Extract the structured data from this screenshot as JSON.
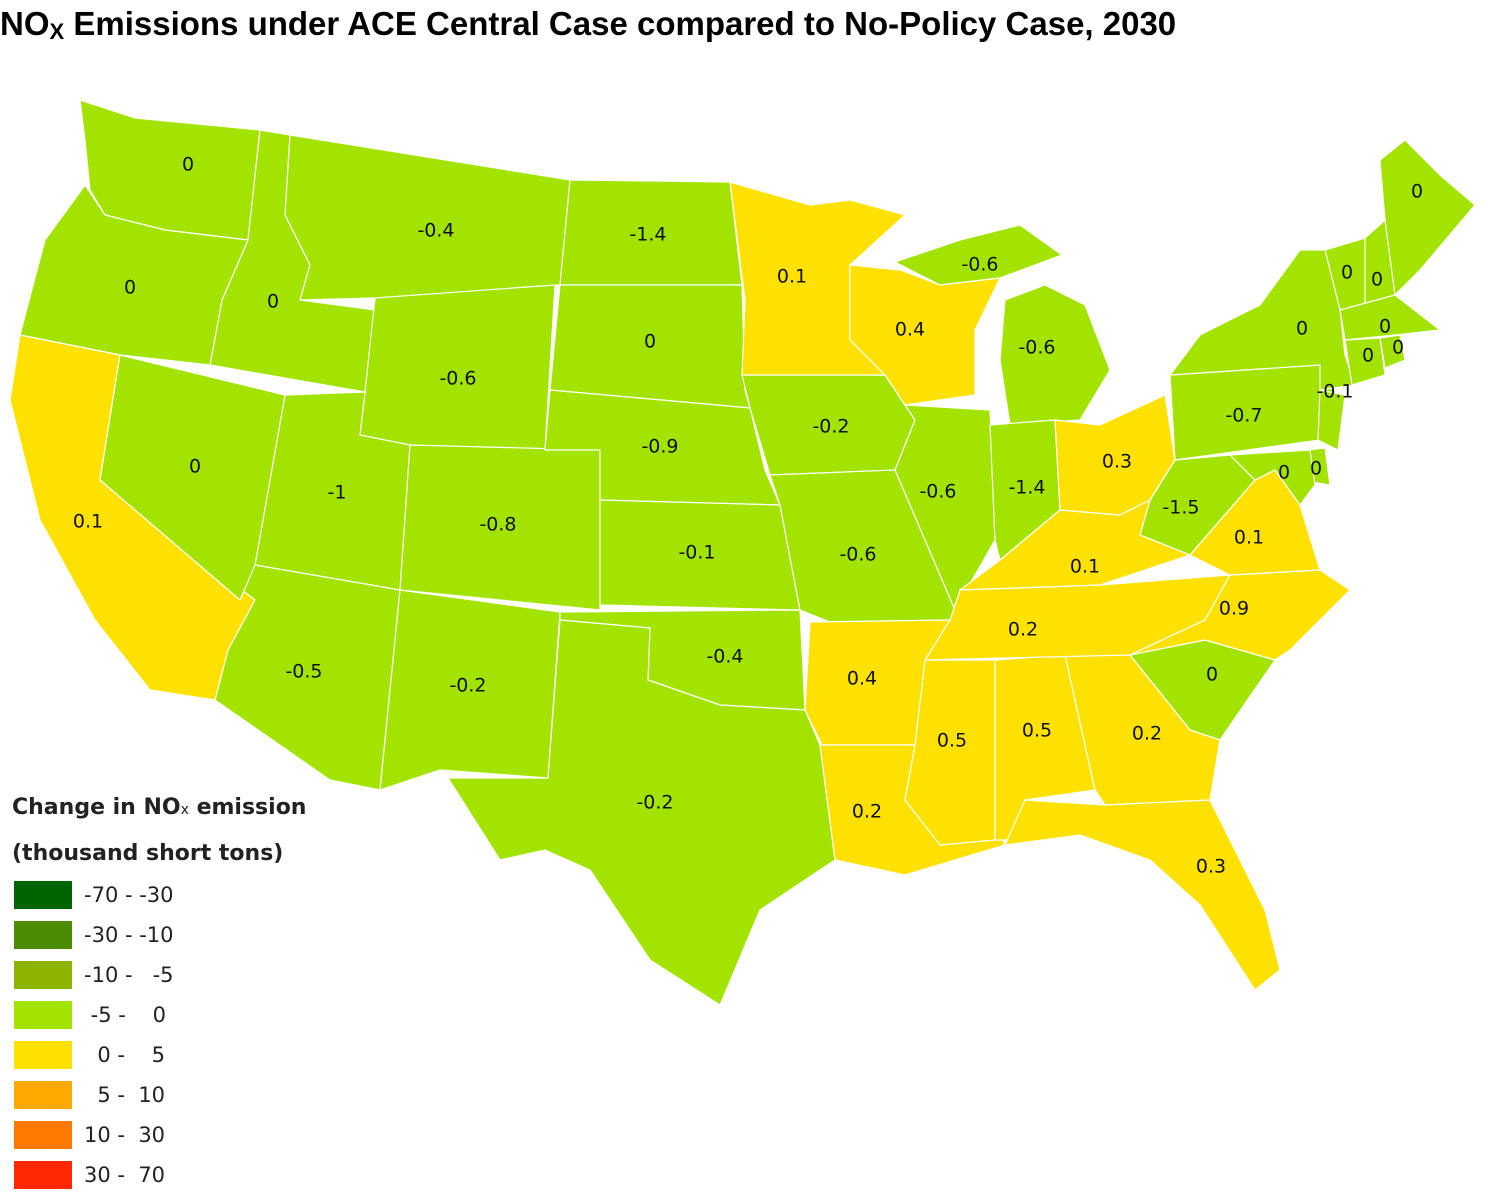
{
  "title": {
    "main": "NO",
    "sub": "X",
    "rest": " Emissions under ACE Central Case compared to No-Policy Case, 2030"
  },
  "colors": {
    "green": "#a2e400",
    "yellow": "#ffe100",
    "border": "#ffffff"
  },
  "legend": {
    "title_line1_a": "Change in NO",
    "title_line1_sub": "x",
    "title_line1_b": " emission",
    "title_line2": "(thousand short tons)",
    "items": [
      {
        "label": "-70 - -30",
        "color": "#006400"
      },
      {
        "label": "-30 - -10",
        "color": "#4c8c00"
      },
      {
        "label": "-10 -   -5",
        "color": "#8cb400"
      },
      {
        "label": " -5 -    0",
        "color": "#a2e400"
      },
      {
        "label": "  0 -    5",
        "color": "#ffe100"
      },
      {
        "label": "  5 -  10",
        "color": "#ffa800"
      },
      {
        "label": "10 -  30",
        "color": "#ff7800"
      },
      {
        "label": "30 -  70",
        "color": "#ff2800"
      }
    ]
  },
  "states": {
    "WA": "0",
    "OR": "0",
    "CA": "0.1",
    "NV": "0",
    "ID": "0",
    "MT": "-0.4",
    "WY": "-0.6",
    "UT": "-1",
    "AZ": "-0.5",
    "CO": "-0.8",
    "NM": "-0.2",
    "ND": "-1.4",
    "SD": "0",
    "NE": "-0.9",
    "KS": "-0.1",
    "OK": "-0.4",
    "TX": "-0.2",
    "MN": "0.1",
    "IA": "-0.2",
    "MO": "-0.6",
    "AR": "0.4",
    "LA": "0.2",
    "WI": "0.4",
    "IL": "-0.6",
    "MS": "0.5",
    "MI_UP": "-0.6",
    "MI": "-0.6",
    "IN": "-1.4",
    "KY": "0.1",
    "TN": "0.2",
    "AL": "0.5",
    "OH": "0.3",
    "GA": "0.2",
    "FL": "0.3",
    "SC": "0",
    "NC": "0.9",
    "VA": "0.1",
    "WV": "-1.5",
    "PA": "-0.7",
    "NY": "0",
    "VT": "0",
    "NH": "0",
    "ME": "0",
    "MA": "0",
    "CT": "0",
    "RI": "0",
    "NJ": "-0.1",
    "DE": "0",
    "MD": "0"
  }
}
